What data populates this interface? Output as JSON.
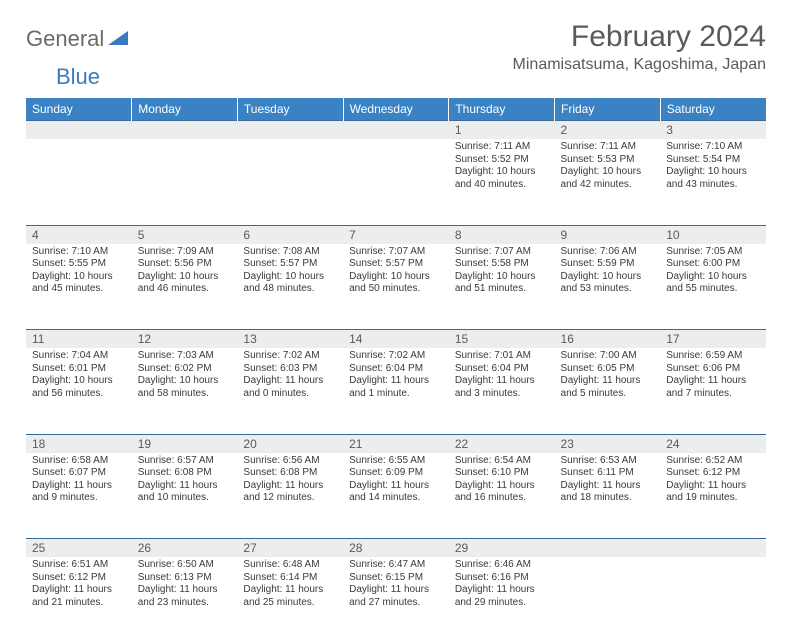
{
  "logo": {
    "part1": "General",
    "part2": "Blue"
  },
  "title": "February 2024",
  "location": "Minamisatsuma, Kagoshima, Japan",
  "day_headers": [
    "Sunday",
    "Monday",
    "Tuesday",
    "Wednesday",
    "Thursday",
    "Friday",
    "Saturday"
  ],
  "colors": {
    "header_bg": "#3a82c4",
    "header_fg": "#ffffff",
    "daynum_bg": "#eceded",
    "rule": "#3a6a9a",
    "text": "#3a3a3a",
    "title_text": "#5a5a5a",
    "logo_gray": "#6a6a6a",
    "logo_blue": "#3a7bbf"
  },
  "weeks": [
    [
      null,
      null,
      null,
      null,
      {
        "n": "1",
        "sunrise": "Sunrise: 7:11 AM",
        "sunset": "Sunset: 5:52 PM",
        "day1": "Daylight: 10 hours",
        "day2": "and 40 minutes."
      },
      {
        "n": "2",
        "sunrise": "Sunrise: 7:11 AM",
        "sunset": "Sunset: 5:53 PM",
        "day1": "Daylight: 10 hours",
        "day2": "and 42 minutes."
      },
      {
        "n": "3",
        "sunrise": "Sunrise: 7:10 AM",
        "sunset": "Sunset: 5:54 PM",
        "day1": "Daylight: 10 hours",
        "day2": "and 43 minutes."
      }
    ],
    [
      {
        "n": "4",
        "sunrise": "Sunrise: 7:10 AM",
        "sunset": "Sunset: 5:55 PM",
        "day1": "Daylight: 10 hours",
        "day2": "and 45 minutes."
      },
      {
        "n": "5",
        "sunrise": "Sunrise: 7:09 AM",
        "sunset": "Sunset: 5:56 PM",
        "day1": "Daylight: 10 hours",
        "day2": "and 46 minutes."
      },
      {
        "n": "6",
        "sunrise": "Sunrise: 7:08 AM",
        "sunset": "Sunset: 5:57 PM",
        "day1": "Daylight: 10 hours",
        "day2": "and 48 minutes."
      },
      {
        "n": "7",
        "sunrise": "Sunrise: 7:07 AM",
        "sunset": "Sunset: 5:57 PM",
        "day1": "Daylight: 10 hours",
        "day2": "and 50 minutes."
      },
      {
        "n": "8",
        "sunrise": "Sunrise: 7:07 AM",
        "sunset": "Sunset: 5:58 PM",
        "day1": "Daylight: 10 hours",
        "day2": "and 51 minutes."
      },
      {
        "n": "9",
        "sunrise": "Sunrise: 7:06 AM",
        "sunset": "Sunset: 5:59 PM",
        "day1": "Daylight: 10 hours",
        "day2": "and 53 minutes."
      },
      {
        "n": "10",
        "sunrise": "Sunrise: 7:05 AM",
        "sunset": "Sunset: 6:00 PM",
        "day1": "Daylight: 10 hours",
        "day2": "and 55 minutes."
      }
    ],
    [
      {
        "n": "11",
        "sunrise": "Sunrise: 7:04 AM",
        "sunset": "Sunset: 6:01 PM",
        "day1": "Daylight: 10 hours",
        "day2": "and 56 minutes."
      },
      {
        "n": "12",
        "sunrise": "Sunrise: 7:03 AM",
        "sunset": "Sunset: 6:02 PM",
        "day1": "Daylight: 10 hours",
        "day2": "and 58 minutes."
      },
      {
        "n": "13",
        "sunrise": "Sunrise: 7:02 AM",
        "sunset": "Sunset: 6:03 PM",
        "day1": "Daylight: 11 hours",
        "day2": "and 0 minutes."
      },
      {
        "n": "14",
        "sunrise": "Sunrise: 7:02 AM",
        "sunset": "Sunset: 6:04 PM",
        "day1": "Daylight: 11 hours",
        "day2": "and 1 minute."
      },
      {
        "n": "15",
        "sunrise": "Sunrise: 7:01 AM",
        "sunset": "Sunset: 6:04 PM",
        "day1": "Daylight: 11 hours",
        "day2": "and 3 minutes."
      },
      {
        "n": "16",
        "sunrise": "Sunrise: 7:00 AM",
        "sunset": "Sunset: 6:05 PM",
        "day1": "Daylight: 11 hours",
        "day2": "and 5 minutes."
      },
      {
        "n": "17",
        "sunrise": "Sunrise: 6:59 AM",
        "sunset": "Sunset: 6:06 PM",
        "day1": "Daylight: 11 hours",
        "day2": "and 7 minutes."
      }
    ],
    [
      {
        "n": "18",
        "sunrise": "Sunrise: 6:58 AM",
        "sunset": "Sunset: 6:07 PM",
        "day1": "Daylight: 11 hours",
        "day2": "and 9 minutes."
      },
      {
        "n": "19",
        "sunrise": "Sunrise: 6:57 AM",
        "sunset": "Sunset: 6:08 PM",
        "day1": "Daylight: 11 hours",
        "day2": "and 10 minutes."
      },
      {
        "n": "20",
        "sunrise": "Sunrise: 6:56 AM",
        "sunset": "Sunset: 6:08 PM",
        "day1": "Daylight: 11 hours",
        "day2": "and 12 minutes."
      },
      {
        "n": "21",
        "sunrise": "Sunrise: 6:55 AM",
        "sunset": "Sunset: 6:09 PM",
        "day1": "Daylight: 11 hours",
        "day2": "and 14 minutes."
      },
      {
        "n": "22",
        "sunrise": "Sunrise: 6:54 AM",
        "sunset": "Sunset: 6:10 PM",
        "day1": "Daylight: 11 hours",
        "day2": "and 16 minutes."
      },
      {
        "n": "23",
        "sunrise": "Sunrise: 6:53 AM",
        "sunset": "Sunset: 6:11 PM",
        "day1": "Daylight: 11 hours",
        "day2": "and 18 minutes."
      },
      {
        "n": "24",
        "sunrise": "Sunrise: 6:52 AM",
        "sunset": "Sunset: 6:12 PM",
        "day1": "Daylight: 11 hours",
        "day2": "and 19 minutes."
      }
    ],
    [
      {
        "n": "25",
        "sunrise": "Sunrise: 6:51 AM",
        "sunset": "Sunset: 6:12 PM",
        "day1": "Daylight: 11 hours",
        "day2": "and 21 minutes."
      },
      {
        "n": "26",
        "sunrise": "Sunrise: 6:50 AM",
        "sunset": "Sunset: 6:13 PM",
        "day1": "Daylight: 11 hours",
        "day2": "and 23 minutes."
      },
      {
        "n": "27",
        "sunrise": "Sunrise: 6:48 AM",
        "sunset": "Sunset: 6:14 PM",
        "day1": "Daylight: 11 hours",
        "day2": "and 25 minutes."
      },
      {
        "n": "28",
        "sunrise": "Sunrise: 6:47 AM",
        "sunset": "Sunset: 6:15 PM",
        "day1": "Daylight: 11 hours",
        "day2": "and 27 minutes."
      },
      {
        "n": "29",
        "sunrise": "Sunrise: 6:46 AM",
        "sunset": "Sunset: 6:16 PM",
        "day1": "Daylight: 11 hours",
        "day2": "and 29 minutes."
      },
      null,
      null
    ]
  ]
}
